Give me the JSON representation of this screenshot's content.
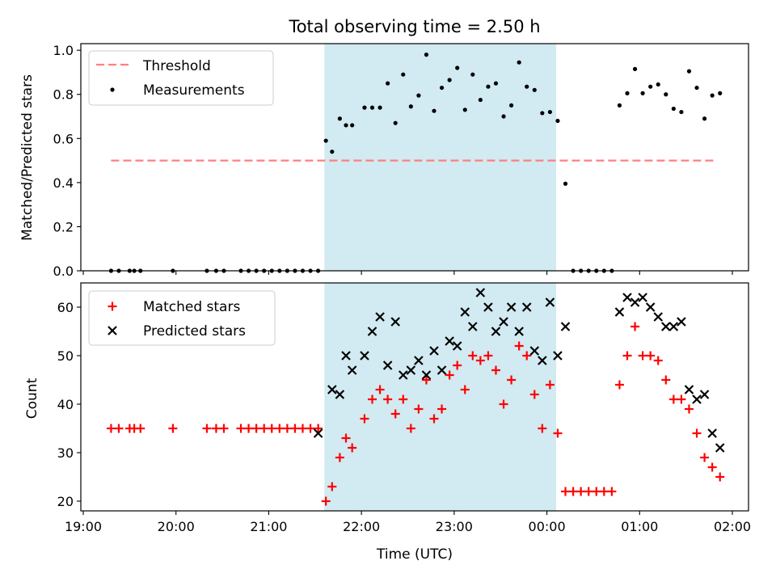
{
  "title": "Total observing time = 2.50 h",
  "colors": {
    "shade": "#add8e6",
    "threshold": "#ff7f7f",
    "measurements": "#000000",
    "matched": "#ff0000",
    "predicted": "#000000"
  },
  "chart_data": [
    {
      "type": "scatter",
      "ylabel": "Matched/Predicted stars",
      "ylim": [
        0.0,
        1.03
      ],
      "yticks": [
        0.0,
        0.2,
        0.4,
        0.6,
        0.8,
        1.0
      ],
      "ytick_labels": [
        "0.0",
        "0.2",
        "0.4",
        "0.6",
        "0.8",
        "1.0"
      ],
      "xlim": [
        "19:00",
        "02:00"
      ],
      "shaded_region": [
        "21:36",
        "00:06"
      ],
      "legend": {
        "placement": "upper left",
        "entries": [
          {
            "label": "Threshold",
            "kind": "dashed-line",
            "color": "#ff7f7f"
          },
          {
            "label": "Measurements",
            "kind": "dot",
            "color": "#000000"
          }
        ]
      },
      "threshold": {
        "name": "Threshold",
        "value": 0.5,
        "x_start": "19:18",
        "x_end": "01:50"
      },
      "series": [
        {
          "name": "Measurements",
          "marker": "dot",
          "points": [
            [
              "19:18",
              0.0
            ],
            [
              "19:23",
              0.0
            ],
            [
              "19:30",
              0.0
            ],
            [
              "19:33",
              0.0
            ],
            [
              "19:37",
              0.0
            ],
            [
              "19:58",
              0.0
            ],
            [
              "20:20",
              0.0
            ],
            [
              "20:26",
              0.0
            ],
            [
              "20:31",
              0.0
            ],
            [
              "20:42",
              0.0
            ],
            [
              "20:47",
              0.0
            ],
            [
              "20:52",
              0.0
            ],
            [
              "20:57",
              0.0
            ],
            [
              "21:02",
              0.0
            ],
            [
              "21:07",
              0.0
            ],
            [
              "21:12",
              0.0
            ],
            [
              "21:17",
              0.0
            ],
            [
              "21:22",
              0.0
            ],
            [
              "21:27",
              0.0
            ],
            [
              "21:32",
              0.0
            ],
            [
              "21:37",
              0.59
            ],
            [
              "21:41",
              0.54
            ],
            [
              "21:46",
              0.69
            ],
            [
              "21:50",
              0.66
            ],
            [
              "21:54",
              0.66
            ],
            [
              "22:02",
              0.74
            ],
            [
              "22:07",
              0.74
            ],
            [
              "22:12",
              0.74
            ],
            [
              "22:17",
              0.85
            ],
            [
              "22:22",
              0.67
            ],
            [
              "22:27",
              0.89
            ],
            [
              "22:32",
              0.745
            ],
            [
              "22:37",
              0.795
            ],
            [
              "22:42",
              0.98
            ],
            [
              "22:47",
              0.725
            ],
            [
              "22:52",
              0.83
            ],
            [
              "22:57",
              0.865
            ],
            [
              "23:02",
              0.92
            ],
            [
              "23:07",
              0.73
            ],
            [
              "23:12",
              0.89
            ],
            [
              "23:17",
              0.775
            ],
            [
              "23:22",
              0.835
            ],
            [
              "23:27",
              0.85
            ],
            [
              "23:32",
              0.7
            ],
            [
              "23:37",
              0.75
            ],
            [
              "23:42",
              0.945
            ],
            [
              "23:47",
              0.835
            ],
            [
              "23:52",
              0.82
            ],
            [
              "23:57",
              0.715
            ],
            [
              "00:02",
              0.72
            ],
            [
              "00:07",
              0.68
            ],
            [
              "00:12",
              0.395
            ],
            [
              "00:17",
              0.0
            ],
            [
              "00:22",
              0.0
            ],
            [
              "00:27",
              0.0
            ],
            [
              "00:32",
              0.0
            ],
            [
              "00:37",
              0.0
            ],
            [
              "00:42",
              0.0
            ],
            [
              "00:47",
              0.75
            ],
            [
              "00:52",
              0.805
            ],
            [
              "00:57",
              0.915
            ],
            [
              "01:02",
              0.805
            ],
            [
              "01:07",
              0.835
            ],
            [
              "01:12",
              0.845
            ],
            [
              "01:17",
              0.8
            ],
            [
              "01:22",
              0.735
            ],
            [
              "01:27",
              0.72
            ],
            [
              "01:32",
              0.905
            ],
            [
              "01:37",
              0.83
            ],
            [
              "01:42",
              0.69
            ],
            [
              "01:47",
              0.795
            ],
            [
              "01:52",
              0.805
            ]
          ]
        }
      ]
    },
    {
      "type": "scatter",
      "xlabel": "Time (UTC)",
      "ylabel": "Count",
      "ylim": [
        18,
        65
      ],
      "yticks": [
        20,
        30,
        40,
        50,
        60
      ],
      "ytick_labels": [
        "20",
        "30",
        "40",
        "50",
        "60"
      ],
      "xlim": [
        "19:00",
        "02:00"
      ],
      "xticks": [
        "19:00",
        "20:00",
        "21:00",
        "22:00",
        "23:00",
        "00:00",
        "01:00",
        "02:00"
      ],
      "xtick_labels": [
        "19:00",
        "20:00",
        "21:00",
        "22:00",
        "23:00",
        "00:00",
        "01:00",
        "02:00"
      ],
      "shaded_region": [
        "21:36",
        "00:06"
      ],
      "legend": {
        "placement": "upper left",
        "entries": [
          {
            "label": "Matched stars",
            "kind": "plus",
            "color": "#ff0000"
          },
          {
            "label": "Predicted stars",
            "kind": "cross",
            "color": "#000000"
          }
        ]
      },
      "series": [
        {
          "name": "Matched stars",
          "marker": "plus",
          "points": [
            [
              "19:18",
              35
            ],
            [
              "19:23",
              35
            ],
            [
              "19:30",
              35
            ],
            [
              "19:33",
              35
            ],
            [
              "19:37",
              35
            ],
            [
              "19:58",
              35
            ],
            [
              "20:20",
              35
            ],
            [
              "20:26",
              35
            ],
            [
              "20:31",
              35
            ],
            [
              "20:42",
              35
            ],
            [
              "20:47",
              35
            ],
            [
              "20:52",
              35
            ],
            [
              "20:57",
              35
            ],
            [
              "21:02",
              35
            ],
            [
              "21:07",
              35
            ],
            [
              "21:12",
              35
            ],
            [
              "21:17",
              35
            ],
            [
              "21:22",
              35
            ],
            [
              "21:27",
              35
            ],
            [
              "21:32",
              35
            ],
            [
              "21:37",
              20
            ],
            [
              "21:41",
              23
            ],
            [
              "21:46",
              29
            ],
            [
              "21:50",
              33
            ],
            [
              "21:54",
              31
            ],
            [
              "22:02",
              37
            ],
            [
              "22:07",
              41
            ],
            [
              "22:12",
              43
            ],
            [
              "22:17",
              41
            ],
            [
              "22:22",
              38
            ],
            [
              "22:27",
              41
            ],
            [
              "22:32",
              35
            ],
            [
              "22:37",
              39
            ],
            [
              "22:42",
              45
            ],
            [
              "22:47",
              37
            ],
            [
              "22:52",
              39
            ],
            [
              "22:57",
              46
            ],
            [
              "23:02",
              48
            ],
            [
              "23:07",
              43
            ],
            [
              "23:12",
              50
            ],
            [
              "23:17",
              49
            ],
            [
              "23:22",
              50
            ],
            [
              "23:27",
              47
            ],
            [
              "23:32",
              40
            ],
            [
              "23:37",
              45
            ],
            [
              "23:42",
              52
            ],
            [
              "23:47",
              50
            ],
            [
              "23:52",
              42
            ],
            [
              "23:57",
              35
            ],
            [
              "00:02",
              44
            ],
            [
              "00:07",
              34
            ],
            [
              "00:12",
              22
            ],
            [
              "00:17",
              22
            ],
            [
              "00:22",
              22
            ],
            [
              "00:27",
              22
            ],
            [
              "00:32",
              22
            ],
            [
              "00:37",
              22
            ],
            [
              "00:42",
              22
            ],
            [
              "00:47",
              44
            ],
            [
              "00:52",
              50
            ],
            [
              "00:57",
              56
            ],
            [
              "01:02",
              50
            ],
            [
              "01:07",
              50
            ],
            [
              "01:12",
              49
            ],
            [
              "01:17",
              45
            ],
            [
              "01:22",
              41
            ],
            [
              "01:27",
              41
            ],
            [
              "01:32",
              39
            ],
            [
              "01:37",
              34
            ],
            [
              "01:42",
              29
            ],
            [
              "01:47",
              27
            ],
            [
              "01:52",
              25
            ]
          ]
        },
        {
          "name": "Predicted stars",
          "marker": "cross",
          "points": [
            [
              "21:32",
              34
            ],
            [
              "21:41",
              43
            ],
            [
              "21:46",
              42
            ],
            [
              "21:50",
              50
            ],
            [
              "21:54",
              47
            ],
            [
              "22:02",
              50
            ],
            [
              "22:07",
              55
            ],
            [
              "22:12",
              58
            ],
            [
              "22:17",
              48
            ],
            [
              "22:22",
              57
            ],
            [
              "22:27",
              46
            ],
            [
              "22:32",
              47
            ],
            [
              "22:37",
              49
            ],
            [
              "22:42",
              46
            ],
            [
              "22:47",
              51
            ],
            [
              "22:52",
              47
            ],
            [
              "22:57",
              53
            ],
            [
              "23:02",
              52
            ],
            [
              "23:07",
              59
            ],
            [
              "23:12",
              56
            ],
            [
              "23:17",
              63
            ],
            [
              "23:22",
              60
            ],
            [
              "23:27",
              55
            ],
            [
              "23:32",
              57
            ],
            [
              "23:37",
              60
            ],
            [
              "23:42",
              55
            ],
            [
              "23:47",
              60
            ],
            [
              "23:52",
              51
            ],
            [
              "23:57",
              49
            ],
            [
              "00:02",
              61
            ],
            [
              "00:07",
              50
            ],
            [
              "00:12",
              56
            ],
            [
              "00:47",
              59
            ],
            [
              "00:52",
              62
            ],
            [
              "00:57",
              61
            ],
            [
              "01:02",
              62
            ],
            [
              "01:07",
              60
            ],
            [
              "01:12",
              58
            ],
            [
              "01:17",
              56
            ],
            [
              "01:22",
              56
            ],
            [
              "01:27",
              57
            ],
            [
              "01:32",
              43
            ],
            [
              "01:37",
              41
            ],
            [
              "01:42",
              42
            ],
            [
              "01:47",
              34
            ],
            [
              "01:52",
              31
            ]
          ]
        }
      ]
    }
  ]
}
